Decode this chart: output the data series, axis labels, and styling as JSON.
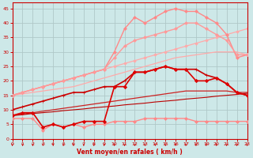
{
  "title": "",
  "xlabel": "Vent moyen/en rafales ( km/h )",
  "x_ticks": [
    0,
    1,
    2,
    3,
    4,
    5,
    6,
    7,
    8,
    9,
    10,
    11,
    12,
    13,
    14,
    15,
    16,
    17,
    18,
    19,
    20,
    21,
    22,
    23
  ],
  "y_ticks": [
    0,
    5,
    10,
    15,
    20,
    25,
    30,
    35,
    40,
    45
  ],
  "xlim": [
    0,
    23
  ],
  "ylim": [
    0,
    47
  ],
  "bg_color": "#cde8e8",
  "grid_color": "#b0c8c8",
  "lines": [
    {
      "x": [
        0,
        1,
        2,
        3,
        4,
        5,
        6,
        7,
        8,
        9,
        10,
        11,
        12,
        13,
        14,
        15,
        16,
        17,
        18,
        19,
        20,
        21,
        22,
        23
      ],
      "y": [
        15,
        15.5,
        16,
        16.5,
        17,
        17.5,
        18,
        19,
        20,
        21,
        22,
        23,
        24,
        25,
        26,
        27,
        28,
        28.5,
        29,
        29.5,
        30,
        30,
        30,
        29
      ],
      "color": "#ffaaaa",
      "lw": 0.9,
      "marker": null,
      "ms": 0,
      "zorder": 2
    },
    {
      "x": [
        0,
        1,
        2,
        3,
        4,
        5,
        6,
        7,
        8,
        9,
        10,
        11,
        12,
        13,
        14,
        15,
        16,
        17,
        18,
        19,
        20,
        21,
        22,
        23
      ],
      "y": [
        15,
        16,
        17,
        18,
        19,
        20,
        21,
        22,
        23,
        24,
        25,
        26,
        27,
        28,
        29,
        30,
        31,
        32,
        33,
        34,
        35,
        36,
        37,
        38
      ],
      "color": "#ffaaaa",
      "lw": 0.9,
      "marker": "D",
      "ms": 1.8,
      "zorder": 2
    },
    {
      "x": [
        0,
        1,
        2,
        3,
        4,
        5,
        6,
        7,
        8,
        9,
        10,
        11,
        12,
        13,
        14,
        15,
        16,
        17,
        18,
        19,
        20,
        21,
        22,
        23
      ],
      "y": [
        15,
        16,
        17,
        18,
        19,
        20,
        21,
        22,
        23,
        24,
        30,
        38,
        42,
        40,
        42,
        44,
        45,
        44,
        44,
        42,
        40,
        36,
        28,
        29
      ],
      "color": "#ff8888",
      "lw": 1.0,
      "marker": "D",
      "ms": 2.0,
      "zorder": 3
    },
    {
      "x": [
        0,
        1,
        2,
        3,
        4,
        5,
        6,
        7,
        8,
        9,
        10,
        11,
        12,
        13,
        14,
        15,
        16,
        17,
        18,
        19,
        20,
        21,
        22,
        23
      ],
      "y": [
        15,
        16,
        17,
        18,
        19,
        20,
        21,
        22,
        23,
        24,
        28,
        32,
        34,
        35,
        36,
        37,
        38,
        40,
        40,
        38,
        36,
        34,
        29,
        29
      ],
      "color": "#ff9999",
      "lw": 1.0,
      "marker": "D",
      "ms": 2.0,
      "zorder": 3
    },
    {
      "x": [
        0,
        1,
        2,
        3,
        4,
        5,
        6,
        7,
        8,
        9,
        10,
        11,
        12,
        13,
        14,
        15,
        16,
        17,
        18,
        19,
        20,
        21,
        22,
        23
      ],
      "y": [
        10,
        11,
        12,
        13,
        14,
        15,
        16,
        16,
        17,
        18,
        18,
        20,
        23,
        23,
        24,
        25,
        24,
        24,
        24,
        22,
        21,
        19,
        16,
        15
      ],
      "color": "#cc0000",
      "lw": 1.2,
      "marker": "+",
      "ms": 3.5,
      "zorder": 5
    },
    {
      "x": [
        0,
        1,
        2,
        3,
        4,
        5,
        6,
        7,
        8,
        9,
        10,
        11,
        12,
        13,
        14,
        15,
        16,
        17,
        18,
        19,
        20,
        21,
        22,
        23
      ],
      "y": [
        8,
        9,
        9,
        4,
        5,
        4,
        5,
        6,
        6,
        6,
        18,
        18,
        23,
        23,
        24,
        25,
        24,
        24,
        20,
        20,
        21,
        19,
        16,
        15
      ],
      "color": "#dd0000",
      "lw": 1.2,
      "marker": "D",
      "ms": 2.2,
      "zorder": 5
    },
    {
      "x": [
        0,
        1,
        2,
        3,
        4,
        5,
        6,
        7,
        8,
        9,
        10,
        11,
        12,
        13,
        14,
        15,
        16,
        17,
        18,
        19,
        20,
        21,
        22,
        23
      ],
      "y": [
        8,
        8.5,
        9,
        9.5,
        10,
        10.5,
        11,
        11.5,
        12,
        12.5,
        13,
        13.5,
        14,
        14.5,
        15,
        15.5,
        16,
        16.5,
        16.5,
        16.5,
        16.5,
        16.5,
        16,
        16
      ],
      "color": "#cc2222",
      "lw": 0.9,
      "marker": null,
      "ms": 0,
      "zorder": 2
    },
    {
      "x": [
        0,
        1,
        2,
        3,
        4,
        5,
        6,
        7,
        8,
        9,
        10,
        11,
        12,
        13,
        14,
        15,
        16,
        17,
        18,
        19,
        20,
        21,
        22,
        23
      ],
      "y": [
        8,
        8.3,
        8.7,
        9,
        9.3,
        9.7,
        10,
        10.3,
        10.7,
        11,
        11.3,
        11.7,
        12,
        12.3,
        12.7,
        13,
        13.3,
        13.7,
        14,
        14.3,
        14.7,
        15,
        15.3,
        15.7
      ],
      "color": "#bb0000",
      "lw": 0.8,
      "marker": null,
      "ms": 0,
      "zorder": 2
    },
    {
      "x": [
        0,
        1,
        2,
        3,
        4,
        5,
        6,
        7,
        8,
        9,
        10,
        11,
        12,
        13,
        14,
        15,
        16,
        17,
        18,
        19,
        20,
        21,
        22,
        23
      ],
      "y": [
        7,
        7,
        7,
        3,
        5,
        4,
        5,
        4,
        5,
        5,
        6,
        6,
        6,
        7,
        7,
        7,
        7,
        7,
        6,
        6,
        6,
        6,
        6,
        6
      ],
      "color": "#ff8888",
      "lw": 1.0,
      "marker": "D",
      "ms": 2.0,
      "zorder": 3
    }
  ]
}
